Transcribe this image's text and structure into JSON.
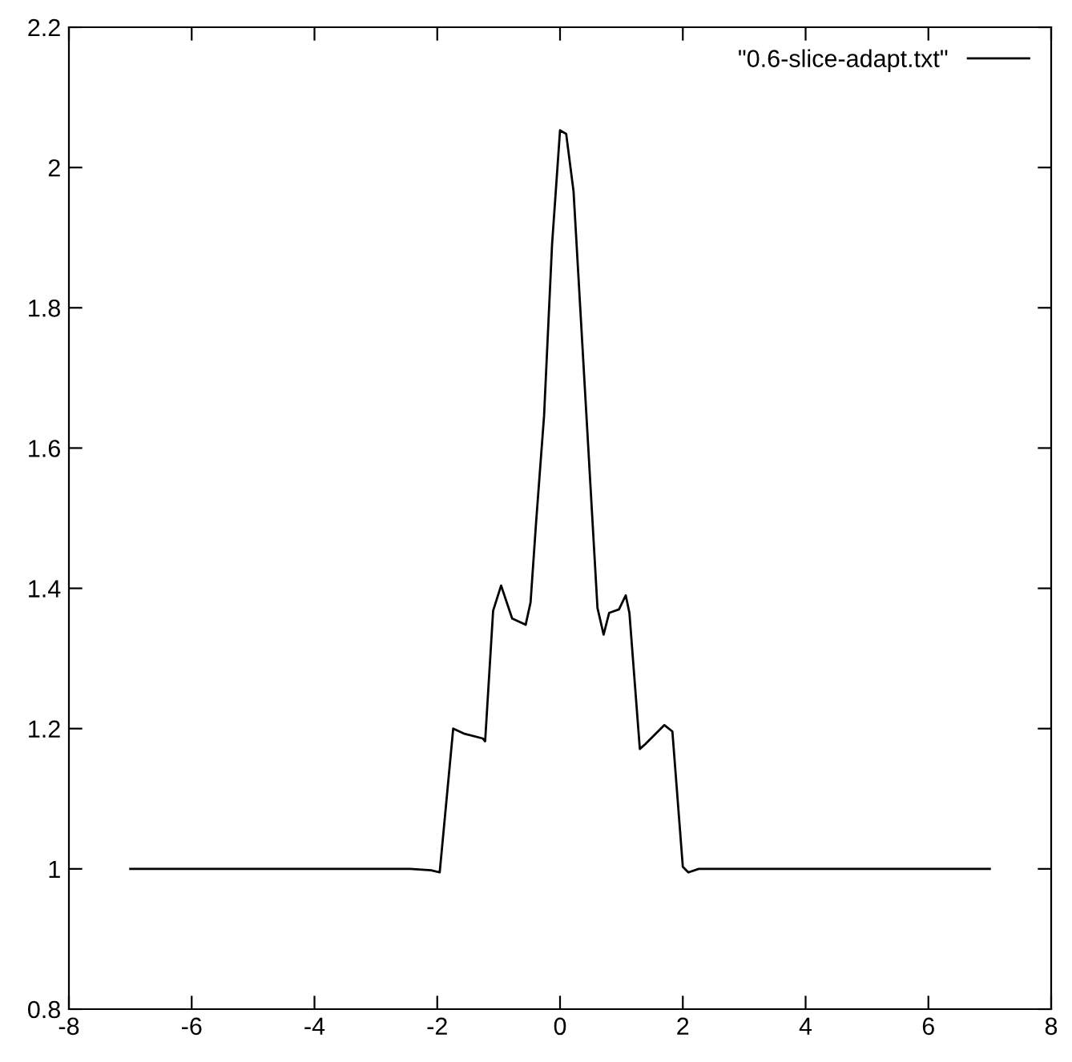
{
  "chart_data": {
    "type": "line",
    "xlim": [
      -8,
      8
    ],
    "ylim": [
      0.8,
      2.2
    ],
    "xticks": [
      -8,
      -6,
      -4,
      -2,
      0,
      2,
      4,
      6,
      8
    ],
    "yticks": [
      0.8,
      1,
      1.2,
      1.4,
      1.6,
      1.8,
      2,
      2.2
    ],
    "grid": false,
    "legend": "top right",
    "series": [
      {
        "name": "\"0.6-slice-adapt.txt\"",
        "color": "#000000",
        "x": [
          -7,
          -2.44,
          -2.1,
          -1.96,
          -1.74,
          -1.57,
          -1.26,
          -1.22,
          -1.09,
          -0.96,
          -0.78,
          -0.56,
          -0.48,
          -0.39,
          -0.26,
          -0.13,
          0.0,
          0.1,
          0.22,
          0.44,
          0.61,
          0.71,
          0.8,
          0.96,
          1.07,
          1.13,
          1.3,
          1.39,
          1.7,
          1.83,
          2.0,
          2.09,
          2.26,
          7
        ],
        "values": [
          1,
          1,
          0.998,
          0.995,
          1.2,
          1.193,
          1.186,
          1.182,
          1.368,
          1.404,
          1.357,
          1.348,
          1.38,
          1.494,
          1.646,
          1.89,
          2.053,
          2.048,
          1.966,
          1.631,
          1.372,
          1.334,
          1.365,
          1.37,
          1.39,
          1.365,
          1.171,
          1.178,
          1.205,
          1.196,
          1.003,
          0.995,
          1,
          1
        ]
      }
    ]
  }
}
